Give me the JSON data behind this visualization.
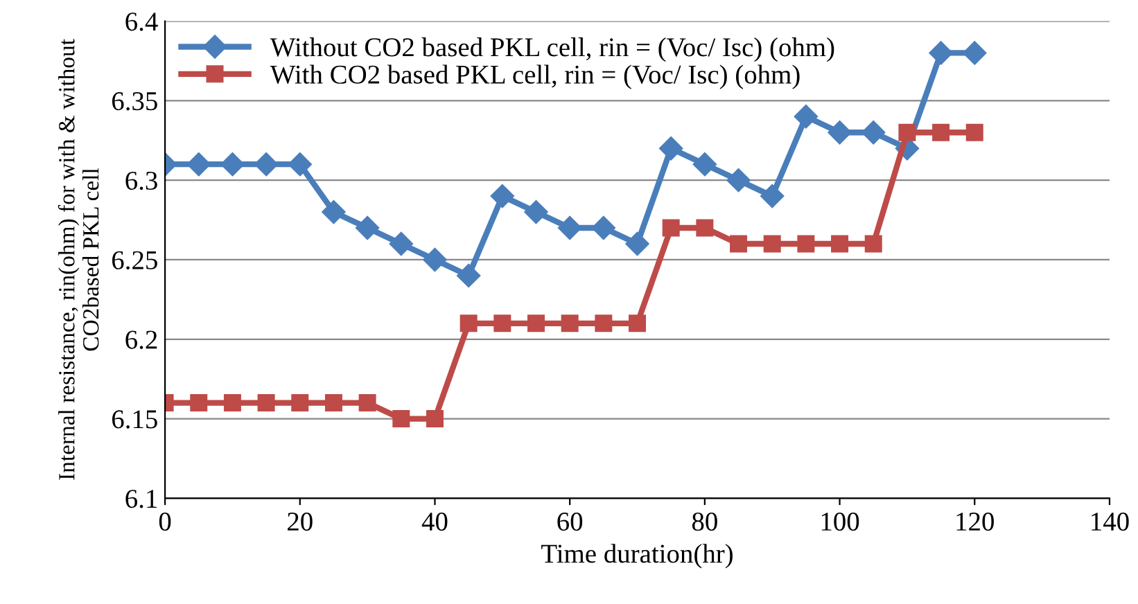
{
  "chart_data": {
    "type": "line",
    "xlabel": "Time duration(hr)",
    "ylabel": "Internal resistance, rin(ohm) for with & without CO2based PKL cell",
    "x": [
      0,
      5,
      10,
      15,
      20,
      25,
      30,
      35,
      40,
      45,
      50,
      55,
      60,
      65,
      70,
      75,
      80,
      85,
      90,
      95,
      100,
      105,
      110,
      115,
      120
    ],
    "series": [
      {
        "name": "Without CO2 based PKL cell, rin = (Voc/ Isc) (ohm)",
        "color": "#4a7ebb",
        "marker": "diamond",
        "values": [
          6.31,
          6.31,
          6.31,
          6.31,
          6.31,
          6.28,
          6.27,
          6.26,
          6.25,
          6.24,
          6.29,
          6.28,
          6.27,
          6.27,
          6.26,
          6.32,
          6.31,
          6.3,
          6.29,
          6.34,
          6.33,
          6.33,
          6.32,
          6.38,
          6.38
        ]
      },
      {
        "name": "With CO2 based PKL cell, rin = (Voc/ Isc) (ohm)",
        "color": "#be4b48",
        "marker": "square",
        "values": [
          6.16,
          6.16,
          6.16,
          6.16,
          6.16,
          6.16,
          6.16,
          6.15,
          6.15,
          6.21,
          6.21,
          6.21,
          6.21,
          6.21,
          6.21,
          6.27,
          6.27,
          6.26,
          6.26,
          6.26,
          6.26,
          6.26,
          6.33,
          6.33,
          6.33
        ]
      }
    ],
    "xlim": [
      0,
      140
    ],
    "xticks": [
      0,
      20,
      40,
      60,
      80,
      100,
      120,
      140
    ],
    "ylim": [
      6.1,
      6.4
    ],
    "yticks": [
      {
        "value": 6.1,
        "label": "6.1"
      },
      {
        "value": 6.15,
        "label": "6.15"
      },
      {
        "value": 6.2,
        "label": "6.2"
      },
      {
        "value": 6.25,
        "label": "6.25"
      },
      {
        "value": 6.3,
        "label": "6.3"
      },
      {
        "value": 6.35,
        "label": "6.35"
      },
      {
        "value": 6.4,
        "label": "6.4"
      }
    ],
    "grid": "y",
    "legend": "top left",
    "line_style": "solid"
  }
}
